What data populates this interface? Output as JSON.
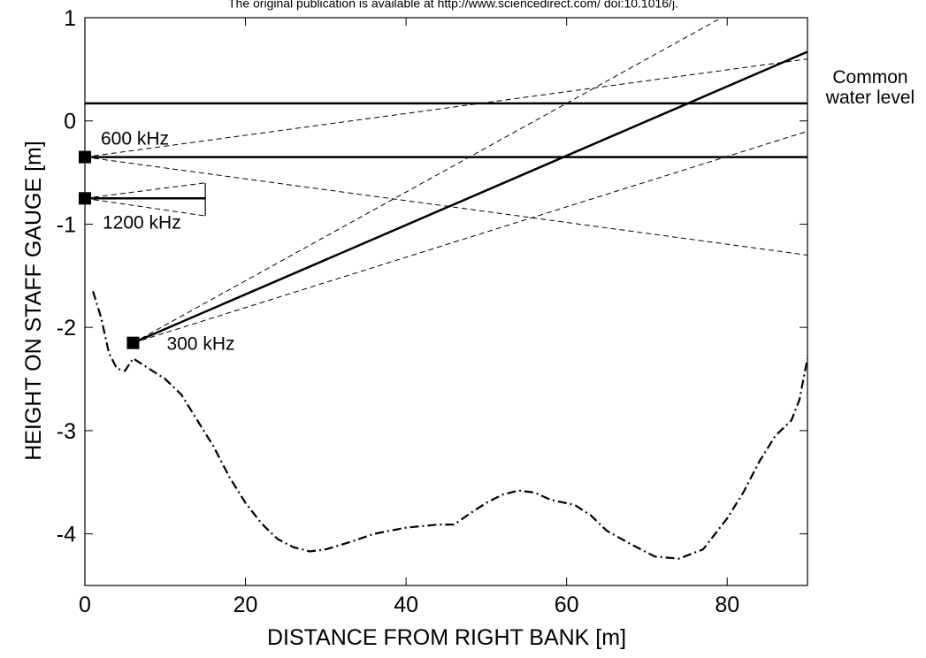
{
  "source_note": "The original publication is available at http://www.sciencedirect.com/ doi:10.1016/j.",
  "chart_data": {
    "type": "line",
    "xlabel": "DISTANCE  FROM  RIGHT  BANK [m]",
    "ylabel": "HEIGHT  ON  STAFF  GAUGE  [m]",
    "xlim": [
      0,
      90
    ],
    "ylim": [
      -4.5,
      1
    ],
    "xticks": [
      0,
      20,
      40,
      60,
      80
    ],
    "yticks": [
      -4,
      -3,
      -2,
      -1,
      0,
      1
    ],
    "series": [
      {
        "name": "Common water level",
        "color": "#000000",
        "style": "solid",
        "x": [
          0,
          90
        ],
        "values": [
          0.17,
          0.17
        ]
      },
      {
        "name": "600 kHz",
        "color": "#000000",
        "style": "solid",
        "marker": "square",
        "x": [
          0,
          90
        ],
        "values": [
          -0.35,
          -0.35
        ]
      },
      {
        "name": "1200 kHz",
        "color": "#000000",
        "style": "solid",
        "marker": "square",
        "x": [
          0,
          15
        ],
        "values": [
          -0.75,
          -0.75
        ]
      },
      {
        "name": "300 kHz",
        "color": "#000000",
        "style": "solid",
        "marker": "square",
        "x": [
          6,
          90
        ],
        "values": [
          -2.15,
          0.67
        ]
      },
      {
        "color": "#000000",
        "style": "dashed",
        "x": [
          0,
          90
        ],
        "values": [
          -0.35,
          0.6
        ]
      },
      {
        "color": "#000000",
        "style": "dashed",
        "x": [
          0,
          90
        ],
        "values": [
          -0.35,
          -1.3
        ]
      },
      {
        "color": "#000000",
        "style": "dashed",
        "x": [
          0,
          15
        ],
        "values": [
          -0.75,
          -0.6
        ]
      },
      {
        "color": "#000000",
        "style": "dashed",
        "x": [
          0,
          15
        ],
        "values": [
          -0.75,
          -0.92
        ]
      },
      {
        "color": "#000000",
        "style": "dashed",
        "x": [
          6,
          79.3
        ],
        "values": [
          -2.15,
          1
        ]
      },
      {
        "color": "#000000",
        "style": "dashed",
        "x": [
          6,
          90
        ],
        "values": [
          -2.15,
          -0.1
        ]
      },
      {
        "color": "#000000",
        "style": "thin",
        "x": [
          15,
          15
        ],
        "values": [
          -0.6,
          -0.92
        ]
      },
      {
        "color": "#000000",
        "style": "dashdot",
        "x": [
          1,
          2,
          3,
          4,
          5,
          6,
          7,
          8,
          10,
          12,
          14,
          16,
          18,
          20,
          22,
          24,
          26,
          28,
          30,
          33,
          36,
          40,
          44,
          46,
          48,
          50,
          52,
          54,
          56,
          58,
          61,
          63,
          65,
          68,
          71,
          74,
          77,
          80,
          82,
          84,
          86,
          88,
          89,
          90
        ],
        "values": [
          -1.65,
          -1.9,
          -2.25,
          -2.4,
          -2.42,
          -2.3,
          -2.35,
          -2.4,
          -2.5,
          -2.65,
          -2.9,
          -3.15,
          -3.45,
          -3.7,
          -3.9,
          -4.05,
          -4.13,
          -4.17,
          -4.15,
          -4.08,
          -4.0,
          -3.94,
          -3.91,
          -3.91,
          -3.8,
          -3.7,
          -3.62,
          -3.58,
          -3.6,
          -3.67,
          -3.72,
          -3.82,
          -3.97,
          -4.1,
          -4.22,
          -4.24,
          -4.15,
          -3.85,
          -3.6,
          -3.3,
          -3.05,
          -2.9,
          -2.7,
          -2.3
        ]
      }
    ]
  }
}
